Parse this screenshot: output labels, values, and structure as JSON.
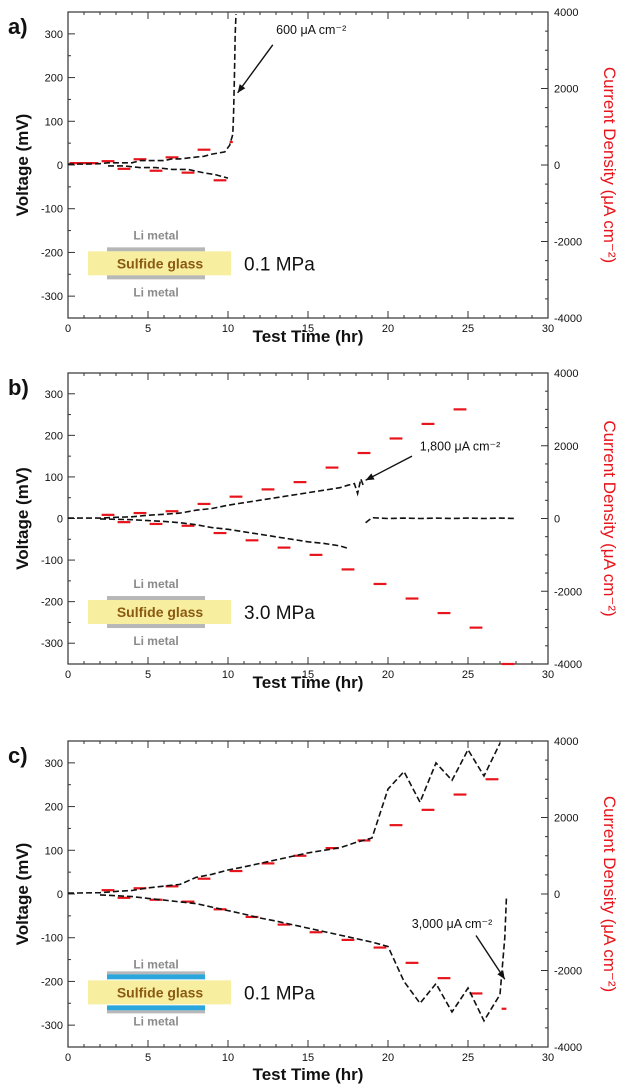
{
  "colors": {
    "voltage_trace": "#111111",
    "current_steps": "#e8141b",
    "current_axis_label": "#e8141b",
    "glass": "#f7ee9f",
    "glass_text": "#8b5a12",
    "li_metal": "#b7b7b7",
    "interlayer": "#2aa6dc",
    "li_text": "#8a8a8a"
  },
  "chart_data": [
    {
      "type": "line",
      "panel_label": "a)",
      "xlabel": "Test Time (hr)",
      "ylabel": "Voltage (mV)",
      "y2label": "Current Density (μA cm⁻²)",
      "xlim": [
        0,
        30
      ],
      "ylim": [
        -350,
        350
      ],
      "y2lim": [
        -4000,
        4000
      ],
      "x_ticks": [
        "0",
        "5",
        "10",
        "15",
        "20",
        "25",
        "30"
      ],
      "y_ticks": [
        "300",
        "200",
        "100",
        "0",
        "-100",
        "-200",
        "-300"
      ],
      "y2_ticks": [
        "4000",
        "2000",
        "0",
        "-2000",
        "-4000"
      ],
      "annotation": {
        "text": "600 μA cm⁻²",
        "x": 10.4,
        "y": 180
      },
      "pressure_label": "0.1 MPa",
      "cell_schematic": {
        "top": "Li metal",
        "middle": "Sulfide glass",
        "bottom": "Li metal",
        "interlayer": false
      },
      "current_steps": [
        {
          "t0": 0,
          "t1": 2,
          "current": 50
        },
        {
          "t0": 2,
          "t1": 3,
          "current": 100
        },
        {
          "t0": 3,
          "t1": 4,
          "current": -100
        },
        {
          "t0": 4,
          "t1": 5,
          "current": 150
        },
        {
          "t0": 5,
          "t1": 6,
          "current": -150
        },
        {
          "t0": 6,
          "t1": 7,
          "current": 200
        },
        {
          "t0": 7,
          "t1": 8,
          "current": -200
        },
        {
          "t0": 8,
          "t1": 9,
          "current": 400
        },
        {
          "t0": 9,
          "t1": 10,
          "current": -400
        },
        {
          "t0": 10,
          "t1": 10.4,
          "current": 600
        }
      ],
      "voltage_series": [
        {
          "name": "charge",
          "x": [
            0,
            1,
            2,
            2.5,
            3,
            4,
            4.5,
            5,
            6,
            6.5,
            7,
            8,
            8.5,
            9,
            9.8,
            10.1,
            10.3,
            10.35,
            10.4,
            10.45,
            10.5
          ],
          "y": [
            2,
            2,
            3,
            5,
            5,
            5,
            10,
            10,
            10,
            14,
            14,
            18,
            20,
            25,
            30,
            45,
            70,
            120,
            200,
            300,
            345
          ]
        },
        {
          "name": "discharge",
          "x": [
            2.5,
            3.5,
            4.5,
            5.5,
            6.5,
            7.5,
            8.5,
            9.2,
            9.6,
            10
          ],
          "y": [
            -2,
            -2,
            -6,
            -6,
            -10,
            -10,
            -18,
            -22,
            -26,
            -30
          ]
        }
      ]
    },
    {
      "type": "line",
      "panel_label": "b)",
      "xlabel": "Test Time (hr)",
      "ylabel": "Voltage (mV)",
      "y2label": "Current Density (μA cm⁻²)",
      "xlim": [
        0,
        30
      ],
      "ylim": [
        -350,
        350
      ],
      "y2lim": [
        -4000,
        4000
      ],
      "x_ticks": [
        "0",
        "5",
        "10",
        "15",
        "20",
        "25",
        "30"
      ],
      "y_ticks": [
        "300",
        "200",
        "100",
        "0",
        "-100",
        "-200",
        "-300"
      ],
      "y2_ticks": [
        "4000",
        "2000",
        "0",
        "-2000",
        "-4000"
      ],
      "annotation": {
        "text": "1,800 μA cm⁻²",
        "x": 18.5,
        "y": 95
      },
      "pressure_label": "3.0 MPa",
      "cell_schematic": {
        "top": "Li metal",
        "middle": "Sulfide glass",
        "bottom": "Li metal",
        "interlayer": false
      },
      "current_steps": [
        {
          "t0": 2,
          "t1": 3,
          "current": 100
        },
        {
          "t0": 3,
          "t1": 4,
          "current": -100
        },
        {
          "t0": 4,
          "t1": 5,
          "current": 150
        },
        {
          "t0": 5,
          "t1": 6,
          "current": -150
        },
        {
          "t0": 6,
          "t1": 7,
          "current": 200
        },
        {
          "t0": 7,
          "t1": 8,
          "current": -200
        },
        {
          "t0": 8,
          "t1": 9,
          "current": 400
        },
        {
          "t0": 9,
          "t1": 10,
          "current": -400
        },
        {
          "t0": 10,
          "t1": 11,
          "current": 600
        },
        {
          "t0": 11,
          "t1": 12,
          "current": -600
        },
        {
          "t0": 12,
          "t1": 13,
          "current": 800
        },
        {
          "t0": 13,
          "t1": 14,
          "current": -800
        },
        {
          "t0": 14,
          "t1": 15,
          "current": 1000
        },
        {
          "t0": 15,
          "t1": 16,
          "current": -1000
        },
        {
          "t0": 16,
          "t1": 17,
          "current": 1400
        },
        {
          "t0": 17,
          "t1": 18,
          "current": -1400
        },
        {
          "t0": 18,
          "t1": 19,
          "current": 1800
        },
        {
          "t0": 19,
          "t1": 20,
          "current": -1800
        },
        {
          "t0": 20,
          "t1": 21,
          "current": 2200
        },
        {
          "t0": 21,
          "t1": 22,
          "current": -2200
        },
        {
          "t0": 22,
          "t1": 23,
          "current": 2600
        },
        {
          "t0": 23,
          "t1": 24,
          "current": -2600
        },
        {
          "t0": 24,
          "t1": 25,
          "current": 3000
        },
        {
          "t0": 25,
          "t1": 26,
          "current": -3000
        },
        {
          "t0": 27,
          "t1": 28,
          "current": -4000
        }
      ],
      "voltage_series": [
        {
          "name": "charge",
          "x": [
            0,
            2,
            3,
            4,
            5,
            6,
            7,
            8,
            9,
            10,
            11,
            12,
            13,
            14,
            15,
            16,
            17,
            17.5,
            17.9,
            18.1,
            18.3,
            18.5
          ],
          "y": [
            1,
            1,
            3,
            4,
            8,
            10,
            13,
            20,
            24,
            32,
            38,
            44,
            50,
            56,
            62,
            68,
            74,
            80,
            84,
            60,
            95,
            75
          ]
        },
        {
          "name": "discharge",
          "x": [
            2,
            3,
            4,
            5,
            6,
            7,
            8,
            9,
            10,
            11,
            12,
            13,
            14,
            15,
            16,
            17,
            17.5
          ],
          "y": [
            -1,
            -2,
            -3,
            -5,
            -7,
            -10,
            -15,
            -22,
            -26,
            -32,
            -38,
            -44,
            -50,
            -56,
            -60,
            -66,
            -72
          ]
        },
        {
          "name": "post-short",
          "x": [
            18.6,
            19,
            20,
            21,
            22,
            23,
            24,
            25,
            26,
            27,
            28
          ],
          "y": [
            -10,
            2,
            0,
            1,
            0,
            1,
            0,
            1,
            0,
            1,
            0
          ]
        }
      ]
    },
    {
      "type": "line",
      "panel_label": "c)",
      "xlabel": "Test Time (hr)",
      "ylabel": "Voltage (mV)",
      "y2label": "Current Density (μA cm⁻²)",
      "xlim": [
        0,
        30
      ],
      "ylim": [
        -350,
        350
      ],
      "y2lim": [
        -4000,
        4000
      ],
      "x_ticks": [
        "0",
        "5",
        "10",
        "15",
        "20",
        "25",
        "30"
      ],
      "y_ticks": [
        "300",
        "200",
        "100",
        "0",
        "-100",
        "-200",
        "-300"
      ],
      "y2_ticks": [
        "4000",
        "2000",
        "0",
        "-2000",
        "-4000"
      ],
      "annotation": {
        "text": "3,000 μA cm⁻²",
        "x": 27.2,
        "y": -110
      },
      "pressure_label": "0.1 MPa",
      "cell_schematic": {
        "top": "Li metal",
        "middle": "Sulfide glass",
        "bottom": "Li metal",
        "interlayer": true
      },
      "current_steps": [
        {
          "t0": 2,
          "t1": 3,
          "current": 100
        },
        {
          "t0": 3,
          "t1": 4,
          "current": -100
        },
        {
          "t0": 4,
          "t1": 5,
          "current": 150
        },
        {
          "t0": 5,
          "t1": 6,
          "current": -150
        },
        {
          "t0": 6,
          "t1": 7,
          "current": 200
        },
        {
          "t0": 7,
          "t1": 8,
          "current": -200
        },
        {
          "t0": 8,
          "t1": 9,
          "current": 400
        },
        {
          "t0": 9,
          "t1": 10,
          "current": -400
        },
        {
          "t0": 10,
          "t1": 11,
          "current": 600
        },
        {
          "t0": 11,
          "t1": 12,
          "current": -600
        },
        {
          "t0": 12,
          "t1": 13,
          "current": 800
        },
        {
          "t0": 13,
          "t1": 14,
          "current": -800
        },
        {
          "t0": 14,
          "t1": 15,
          "current": 1000
        },
        {
          "t0": 15,
          "t1": 16,
          "current": -1000
        },
        {
          "t0": 16,
          "t1": 17,
          "current": 1200
        },
        {
          "t0": 17,
          "t1": 18,
          "current": -1200
        },
        {
          "t0": 18,
          "t1": 19,
          "current": 1400
        },
        {
          "t0": 19,
          "t1": 20,
          "current": -1400
        },
        {
          "t0": 20,
          "t1": 21,
          "current": 1800
        },
        {
          "t0": 21,
          "t1": 22,
          "current": -1800
        },
        {
          "t0": 22,
          "t1": 23,
          "current": 2200
        },
        {
          "t0": 23,
          "t1": 24,
          "current": -2200
        },
        {
          "t0": 24,
          "t1": 25,
          "current": 2600
        },
        {
          "t0": 25,
          "t1": 26,
          "current": -2600
        },
        {
          "t0": 26,
          "t1": 27,
          "current": 3000
        },
        {
          "t0": 27,
          "t1": 27.5,
          "current": -3000
        }
      ],
      "voltage_series": [
        {
          "name": "charge",
          "x": [
            0,
            2,
            3,
            4,
            5,
            6,
            7,
            8,
            9,
            10,
            11,
            12,
            13,
            14,
            15,
            16,
            17,
            18,
            19,
            20,
            21,
            22,
            23,
            24,
            25,
            26,
            27
          ],
          "y": [
            2,
            3,
            6,
            8,
            14,
            18,
            22,
            38,
            45,
            55,
            62,
            70,
            78,
            86,
            94,
            100,
            106,
            118,
            128,
            240,
            280,
            210,
            300,
            260,
            330,
            270,
            345
          ]
        },
        {
          "name": "discharge",
          "x": [
            2,
            3,
            4,
            5,
            6,
            7,
            8,
            9,
            10,
            11,
            12,
            13,
            14,
            15,
            16,
            17,
            18,
            19,
            20,
            21,
            22,
            23,
            24,
            25,
            26,
            27,
            27.3,
            27.4
          ],
          "y": [
            -2,
            -4,
            -6,
            -10,
            -14,
            -18,
            -22,
            -30,
            -38,
            -46,
            -55,
            -62,
            -70,
            -78,
            -86,
            -94,
            -102,
            -110,
            -120,
            -200,
            -250,
            -205,
            -270,
            -215,
            -290,
            -230,
            -100,
            -10
          ]
        }
      ]
    }
  ]
}
